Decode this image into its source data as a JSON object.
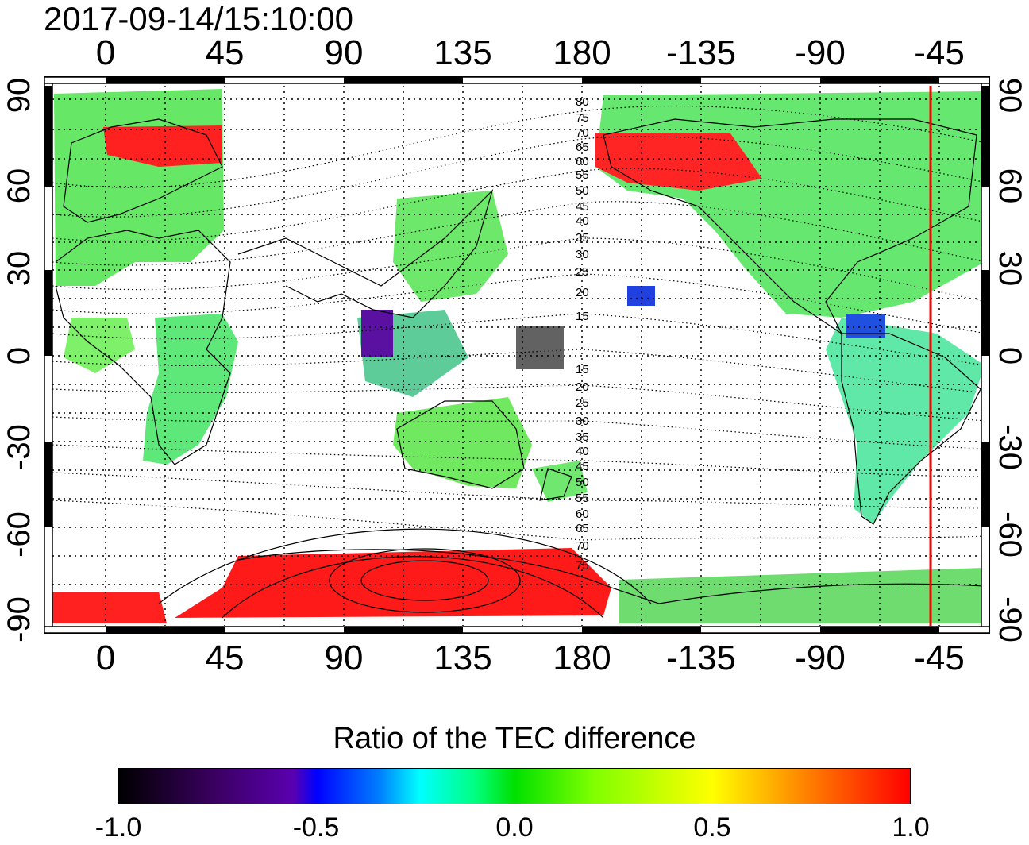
{
  "timestamp": "2017-09-14/15:10:00",
  "top_lon_ticks": [
    "0",
    "45",
    "90",
    "135",
    "180",
    "-135",
    "-90",
    "-45"
  ],
  "bottom_lon_ticks": [
    "0",
    "45",
    "90",
    "135",
    "180",
    "-135",
    "-90",
    "-45"
  ],
  "left_lat_ticks": [
    "90",
    "60",
    "30",
    "0",
    "-30",
    "-60",
    "-90"
  ],
  "right_lat_ticks": [
    "90",
    "60",
    "30",
    "0",
    "-30",
    "-60",
    "-90"
  ],
  "contour_labels_north": [
    "80",
    "75",
    "70",
    "65",
    "60",
    "55",
    "50",
    "45",
    "40",
    "35",
    "30",
    "25",
    "20",
    "15"
  ],
  "contour_labels_south": [
    "15",
    "20",
    "25",
    "30",
    "35",
    "40",
    "45",
    "50",
    "55",
    "60",
    "65",
    "70",
    "75"
  ],
  "colorbar": {
    "title": "Ratio of the TEC difference",
    "tick_labels": [
      "-1.0",
      "-0.5",
      "0.0",
      "0.5",
      "1.0"
    ],
    "min": -1.0,
    "max": 1.0,
    "colors": [
      "#000000",
      "#5a00b0",
      "#0000ff",
      "#00ffff",
      "#00e000",
      "#ffff00",
      "#ff0000"
    ]
  },
  "marker_longitude_line": {
    "lon": -45,
    "color": "#ff0000"
  }
}
